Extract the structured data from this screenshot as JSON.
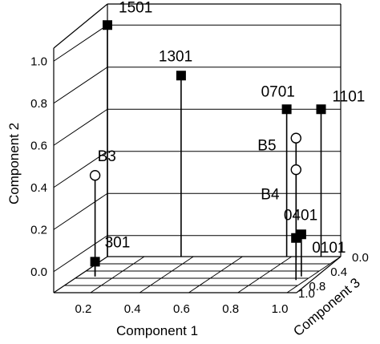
{
  "chart_data": {
    "type": "scatter",
    "projection": "3d",
    "stems": true,
    "xlabel": "Component 1",
    "ylabel": "Component 2",
    "zlabel": "Component 3",
    "x_ticks": [
      "0.2",
      "0.4",
      "0.6",
      "0.8",
      "1.0"
    ],
    "y_ticks": [
      "0.0",
      "0.2",
      "0.4",
      "0.6",
      "0.8",
      "1.0"
    ],
    "z_ticks": [
      "0.0",
      "0.4",
      "0.8",
      "1.0"
    ],
    "xlim": [
      0.05,
      1.0
    ],
    "ylim": [
      -0.1,
      1.1
    ],
    "zlim": [
      0.0,
      1.0
    ],
    "grid": true,
    "points": [
      {
        "label": "1501",
        "x": 0.05,
        "y": 1.0,
        "z": 0.0,
        "marker": "square"
      },
      {
        "label": "1301",
        "x": 0.35,
        "y": 0.76,
        "z": 0.0,
        "marker": "square"
      },
      {
        "label": "0701",
        "x": 0.78,
        "y": 0.6,
        "z": 0.0,
        "marker": "square"
      },
      {
        "label": "1101",
        "x": 0.92,
        "y": 0.6,
        "z": 0.0,
        "marker": "square"
      },
      {
        "label": "B5",
        "x": 0.84,
        "y": 0.48,
        "z": 0.1,
        "marker": "circle"
      },
      {
        "label": "B4",
        "x": 0.84,
        "y": 0.33,
        "z": 0.1,
        "marker": "circle"
      },
      {
        "label": "B3",
        "x": 0.12,
        "y": 0.38,
        "z": 0.55,
        "marker": "circle"
      },
      {
        "label": "0401",
        "x": 0.96,
        "y": 0.1,
        "z": 0.55,
        "marker": "square"
      },
      {
        "label": "0101",
        "x": 0.96,
        "y": 0.1,
        "z": 0.65,
        "marker": "square"
      },
      {
        "label": "301",
        "x": 0.12,
        "y": -0.03,
        "z": 0.55,
        "marker": "square"
      }
    ]
  }
}
